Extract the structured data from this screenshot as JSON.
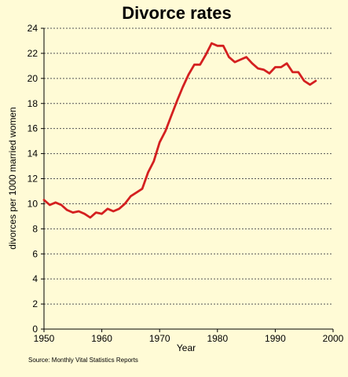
{
  "chart_data": {
    "type": "line",
    "title": "Divorce rates",
    "xlabel": "Year",
    "ylabel": "divorces per 1000 married women",
    "source": "Source: Monthly Vital Statistics Reports",
    "xlim": [
      1950,
      2000
    ],
    "ylim": [
      0,
      24
    ],
    "x_ticks": [
      1950,
      1960,
      1970,
      1980,
      1990,
      2000
    ],
    "y_ticks": [
      0,
      2,
      4,
      6,
      8,
      10,
      12,
      14,
      16,
      18,
      20,
      22,
      24
    ],
    "grid": "horizontal-dashed",
    "line_color": "#d42020",
    "background_color": "#fffbd6",
    "series": [
      {
        "x": [
          1950,
          1951,
          1952,
          1953,
          1954,
          1955,
          1956,
          1957,
          1958,
          1959,
          1960,
          1961,
          1962,
          1963,
          1964,
          1965,
          1966,
          1967,
          1968,
          1969,
          1970,
          1971,
          1972,
          1973,
          1974,
          1975,
          1976,
          1977,
          1978,
          1979,
          1980,
          1981,
          1982,
          1983,
          1984,
          1985,
          1986,
          1987,
          1988,
          1989,
          1990,
          1991,
          1992,
          1993,
          1994,
          1995,
          1996,
          1997
        ],
        "values": [
          10.3,
          9.9,
          10.1,
          9.9,
          9.5,
          9.3,
          9.4,
          9.2,
          8.9,
          9.3,
          9.2,
          9.6,
          9.4,
          9.6,
          10.0,
          10.6,
          10.9,
          11.2,
          12.5,
          13.4,
          14.9,
          15.8,
          17.0,
          18.2,
          19.3,
          20.3,
          21.1,
          21.1,
          21.9,
          22.8,
          22.6,
          22.6,
          21.7,
          21.3,
          21.5,
          21.7,
          21.2,
          20.8,
          20.7,
          20.4,
          20.9,
          20.9,
          21.2,
          20.5,
          20.5,
          19.8,
          19.5,
          19.8
        ]
      }
    ]
  }
}
